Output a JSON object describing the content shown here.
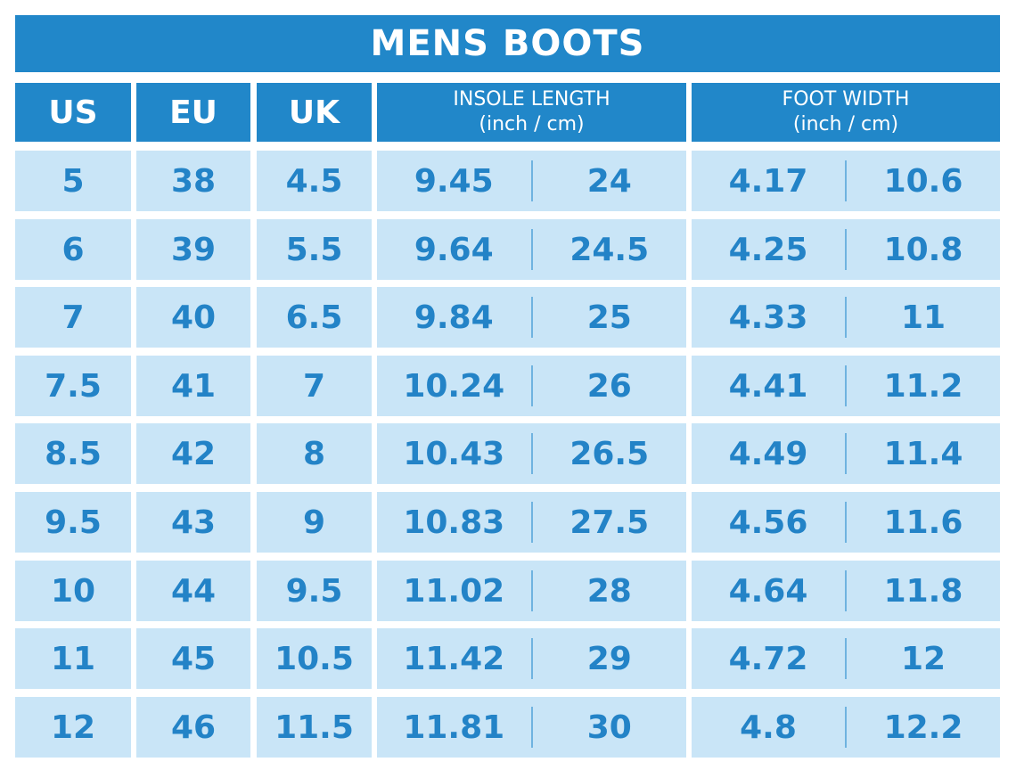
{
  "title": "MENS BOOTS",
  "headers": {
    "us": "US",
    "eu": "EU",
    "uk": "UK",
    "insole_title": "INSOLE LENGTH",
    "insole_units": "(inch / cm)",
    "width_title": "FOOT WIDTH",
    "width_units": "(inch / cm)"
  },
  "rows": [
    {
      "us": "5",
      "eu": "38",
      "uk": "4.5",
      "insole_in": "9.45",
      "insole_cm": "24",
      "width_in": "4.17",
      "width_cm": "10.6"
    },
    {
      "us": "6",
      "eu": "39",
      "uk": "5.5",
      "insole_in": "9.64",
      "insole_cm": "24.5",
      "width_in": "4.25",
      "width_cm": "10.8"
    },
    {
      "us": "7",
      "eu": "40",
      "uk": "6.5",
      "insole_in": "9.84",
      "insole_cm": "25",
      "width_in": "4.33",
      "width_cm": "11"
    },
    {
      "us": "7.5",
      "eu": "41",
      "uk": "7",
      "insole_in": "10.24",
      "insole_cm": "26",
      "width_in": "4.41",
      "width_cm": "11.2"
    },
    {
      "us": "8.5",
      "eu": "42",
      "uk": "8",
      "insole_in": "10.43",
      "insole_cm": "26.5",
      "width_in": "4.49",
      "width_cm": "11.4"
    },
    {
      "us": "9.5",
      "eu": "43",
      "uk": "9",
      "insole_in": "10.83",
      "insole_cm": "27.5",
      "width_in": "4.56",
      "width_cm": "11.6"
    },
    {
      "us": "10",
      "eu": "44",
      "uk": "9.5",
      "insole_in": "11.02",
      "insole_cm": "28",
      "width_in": "4.64",
      "width_cm": "11.8"
    },
    {
      "us": "11",
      "eu": "45",
      "uk": "10.5",
      "insole_in": "11.42",
      "insole_cm": "29",
      "width_in": "4.72",
      "width_cm": "12"
    },
    {
      "us": "12",
      "eu": "46",
      "uk": "11.5",
      "insole_in": "11.81",
      "insole_cm": "30",
      "width_in": "4.8",
      "width_cm": "12.2"
    }
  ],
  "colors": {
    "header_blue": "#2187c9",
    "row_bg": "#c9e5f7",
    "value_text": "#2383c7",
    "divider": "#6fb3e0"
  }
}
